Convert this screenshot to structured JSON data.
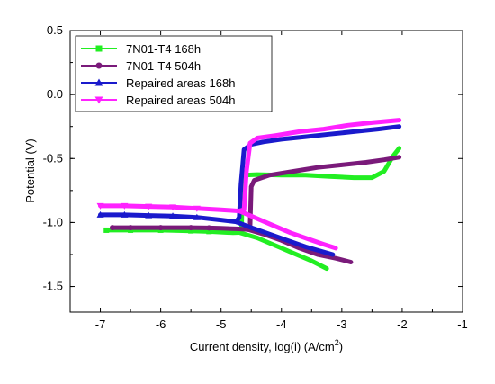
{
  "chart_data": {
    "type": "line",
    "title": "",
    "xlabel": "Current density, log(i)  (A/cm",
    "xlabel_sup": "2",
    "xlabel_end": ")",
    "ylabel": "Potential (V)",
    "xlim": [
      -7.5,
      -1
    ],
    "ylim": [
      -1.7,
      0.5
    ],
    "xticks": [
      -7,
      -6,
      -5,
      -4,
      -3,
      -2,
      -1
    ],
    "yticks": [
      0.5,
      0.0,
      -0.5,
      -1.0,
      -1.5
    ],
    "xtick_labels": [
      "-7",
      "-6",
      "-5",
      "-4",
      "-3",
      "-2",
      "-1"
    ],
    "ytick_labels": [
      "0.5",
      "0.0",
      "-0.5",
      "-1.0",
      "-1.5"
    ],
    "grid": false,
    "legend_position": "top-left",
    "series": [
      {
        "name": "7N01-T4 168h",
        "color": "#22ee22",
        "marker": "square",
        "points": [
          [
            -6.9,
            -1.06
          ],
          [
            -6.5,
            -1.06
          ],
          [
            -6.0,
            -1.06
          ],
          [
            -5.5,
            -1.065
          ],
          [
            -5.2,
            -1.07
          ],
          [
            -5.0,
            -1.075
          ],
          [
            -4.8,
            -1.08
          ],
          [
            -4.7,
            -1.078
          ],
          [
            -4.66,
            -1.06
          ],
          [
            -4.65,
            -0.66
          ],
          [
            -4.62,
            -0.63
          ],
          [
            -4.4,
            -0.625
          ],
          [
            -4.0,
            -0.63
          ],
          [
            -3.6,
            -0.63
          ],
          [
            -3.2,
            -0.64
          ],
          [
            -2.8,
            -0.65
          ],
          [
            -2.5,
            -0.65
          ],
          [
            -2.3,
            -0.6
          ],
          [
            -2.15,
            -0.48
          ],
          [
            -2.05,
            -0.42
          ]
        ],
        "cathodic": [
          [
            -4.7,
            -1.078
          ],
          [
            -4.4,
            -1.12
          ],
          [
            -4.1,
            -1.18
          ],
          [
            -3.8,
            -1.24
          ],
          [
            -3.5,
            -1.3
          ],
          [
            -3.25,
            -1.36
          ]
        ]
      },
      {
        "name": "7N01-T4 504h",
        "color": "#7a1a7a",
        "marker": "circle",
        "points": [
          [
            -6.8,
            -1.04
          ],
          [
            -6.5,
            -1.04
          ],
          [
            -6.0,
            -1.04
          ],
          [
            -5.5,
            -1.04
          ],
          [
            -5.2,
            -1.042
          ],
          [
            -5.0,
            -1.045
          ],
          [
            -4.7,
            -1.05
          ],
          [
            -4.55,
            -1.055
          ],
          [
            -4.52,
            -1.03
          ],
          [
            -4.5,
            -0.72
          ],
          [
            -4.45,
            -0.67
          ],
          [
            -4.2,
            -0.63
          ],
          [
            -3.8,
            -0.6
          ],
          [
            -3.4,
            -0.57
          ],
          [
            -3.0,
            -0.55
          ],
          [
            -2.6,
            -0.53
          ],
          [
            -2.3,
            -0.51
          ],
          [
            -2.05,
            -0.49
          ]
        ],
        "cathodic": [
          [
            -4.55,
            -1.055
          ],
          [
            -4.3,
            -1.09
          ],
          [
            -4.0,
            -1.14
          ],
          [
            -3.7,
            -1.2
          ],
          [
            -3.4,
            -1.25
          ],
          [
            -3.1,
            -1.28
          ],
          [
            -2.85,
            -1.31
          ]
        ]
      },
      {
        "name": "Repaired areas 168h",
        "color": "#1a1acc",
        "marker": "triangle-up",
        "points": [
          [
            -7.0,
            -0.94
          ],
          [
            -6.6,
            -0.94
          ],
          [
            -6.2,
            -0.945
          ],
          [
            -5.8,
            -0.95
          ],
          [
            -5.4,
            -0.96
          ],
          [
            -5.0,
            -0.98
          ],
          [
            -4.75,
            -0.995
          ],
          [
            -4.7,
            -0.96
          ],
          [
            -4.67,
            -0.7
          ],
          [
            -4.62,
            -0.43
          ],
          [
            -4.5,
            -0.39
          ],
          [
            -4.3,
            -0.37
          ],
          [
            -4.0,
            -0.35
          ],
          [
            -3.6,
            -0.33
          ],
          [
            -3.2,
            -0.31
          ],
          [
            -2.8,
            -0.29
          ],
          [
            -2.4,
            -0.27
          ],
          [
            -2.05,
            -0.25
          ]
        ],
        "cathodic": [
          [
            -4.75,
            -0.995
          ],
          [
            -4.5,
            -1.04
          ],
          [
            -4.2,
            -1.09
          ],
          [
            -3.9,
            -1.14
          ],
          [
            -3.6,
            -1.19
          ],
          [
            -3.3,
            -1.23
          ],
          [
            -3.15,
            -1.25
          ]
        ]
      },
      {
        "name": "Repaired areas 504h",
        "color": "#ff22ff",
        "marker": "triangle-down",
        "points": [
          [
            -7.0,
            -0.87
          ],
          [
            -6.6,
            -0.87
          ],
          [
            -6.2,
            -0.875
          ],
          [
            -5.8,
            -0.88
          ],
          [
            -5.4,
            -0.89
          ],
          [
            -5.0,
            -0.9
          ],
          [
            -4.7,
            -0.91
          ],
          [
            -4.62,
            -0.9
          ],
          [
            -4.58,
            -0.6
          ],
          [
            -4.52,
            -0.38
          ],
          [
            -4.4,
            -0.34
          ],
          [
            -4.1,
            -0.32
          ],
          [
            -3.7,
            -0.29
          ],
          [
            -3.3,
            -0.27
          ],
          [
            -2.9,
            -0.24
          ],
          [
            -2.5,
            -0.22
          ],
          [
            -2.05,
            -0.2
          ]
        ],
        "cathodic": [
          [
            -4.7,
            -0.91
          ],
          [
            -4.45,
            -0.96
          ],
          [
            -4.15,
            -1.02
          ],
          [
            -3.85,
            -1.08
          ],
          [
            -3.55,
            -1.13
          ],
          [
            -3.3,
            -1.17
          ],
          [
            -3.1,
            -1.2
          ]
        ]
      }
    ]
  }
}
